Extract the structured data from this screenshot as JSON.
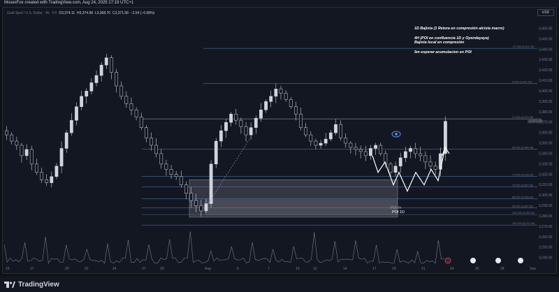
{
  "header": {
    "creator_text": "MosesFox created with TradingView.com, Aug 24, 2025 17:19 UTC+1"
  },
  "ohlc": {
    "symbol": "Gold Spot / U.S. Dollar · 4h · FX",
    "open": "O3,374.11",
    "high": "H3,374.98",
    "low": "L3,368.70",
    "close": "C3,371.58",
    "change": "−2.54 (−0.08%)"
  },
  "currency": "USD",
  "annotations": [
    "1D Bajista (1 Retura en compresión alcista macro)",
    "4H (POI en confluencia 1D y Oyendayaya)",
    "Bajista local en compresión",
    "5m esperar acumulacion en POI"
  ],
  "fib_labels": [
    "-27.000 (3,441.02)",
    "0.000 (3,407.25)",
    "27.000 (3,373.38)",
    "50.000 (3,344.45)",
    "71.000 (3,318.03)",
    "79.000 (3,307.96)",
    "88.000 (3,296.64)",
    "95.000 (3,287.83)",
    "100.000 (3,281.54)",
    "100.000 (3,271.46)"
  ],
  "poi": {
    "label": "POI 1D",
    "sublabel": "POI 4h"
  },
  "price_badge": "3,371.58",
  "footer": {
    "brand": "TradingView"
  },
  "chart_data": {
    "type": "candlestick",
    "title": "Gold Spot / U.S. Dollar · 4h",
    "ylim": [
      3230,
      3470
    ],
    "y_ticks": [
      3240,
      3250,
      3260,
      3270,
      3280,
      3290,
      3300,
      3310,
      3320,
      3330,
      3340,
      3350,
      3360,
      3370,
      3380,
      3390,
      3400,
      3410,
      3420,
      3430,
      3440,
      3450,
      3460
    ],
    "x_tick_labels": [
      "15",
      "17",
      "20",
      "22",
      "24",
      "27",
      "29",
      "Aug",
      "5",
      "7",
      "10",
      "12",
      "14",
      "17",
      "19",
      "21",
      "24",
      "26",
      "28",
      "Sep"
    ],
    "close_path": [
      3358,
      3352,
      3348,
      3338,
      3344,
      3330,
      3322,
      3315,
      3312,
      3318,
      3328,
      3345,
      3360,
      3372,
      3385,
      3395,
      3400,
      3408,
      3415,
      3425,
      3432,
      3418,
      3405,
      3395,
      3388,
      3382,
      3375,
      3365,
      3355,
      3348,
      3340,
      3330,
      3325,
      3320,
      3318,
      3310,
      3302,
      3295,
      3290,
      3285,
      3292,
      3330,
      3352,
      3362,
      3370,
      3378,
      3372,
      3366,
      3358,
      3365,
      3374,
      3382,
      3390,
      3395,
      3402,
      3398,
      3392,
      3385,
      3378,
      3365,
      3358,
      3352,
      3348,
      3350,
      3354,
      3360,
      3368,
      3355,
      3350,
      3346,
      3344,
      3342,
      3338,
      3345,
      3348,
      3340,
      3330,
      3322,
      3328,
      3336,
      3342,
      3345,
      3340,
      3338,
      3332,
      3328,
      3325,
      3340,
      3371
    ],
    "fib_levels": [
      {
        "level": -27.0,
        "price": 3441.02
      },
      {
        "level": 0.0,
        "price": 3407.25
      },
      {
        "level": 27.0,
        "price": 3373.38
      },
      {
        "level": 50.0,
        "price": 3344.45
      },
      {
        "level": 71.0,
        "price": 3318.03
      },
      {
        "level": 79.0,
        "price": 3307.96
      },
      {
        "level": 88.0,
        "price": 3296.64
      },
      {
        "level": 95.0,
        "price": 3287.83
      },
      {
        "level": 100.0,
        "price": 3281.54
      },
      {
        "level": 100.0,
        "price": 3271.46
      }
    ],
    "poi_zone": {
      "top": 3315,
      "bottom": 3279
    },
    "last_price": 3371.58,
    "grid": false,
    "legend": "none"
  }
}
